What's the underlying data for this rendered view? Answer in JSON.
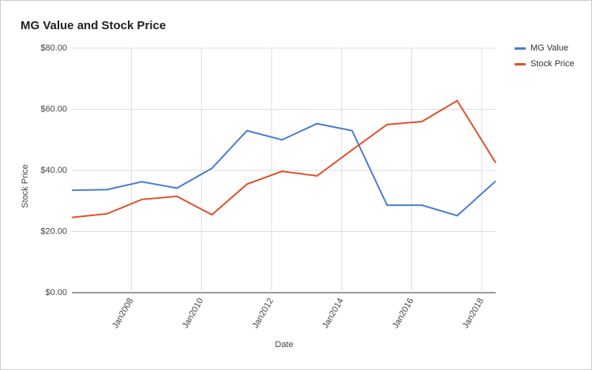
{
  "chart_data": {
    "type": "line",
    "title": "MG Value and Stock Price",
    "x_label": "Date",
    "y_label": "Stock Price",
    "x": [
      2006.3,
      2007.3,
      2008.3,
      2009.3,
      2010.3,
      2011.3,
      2012.3,
      2013.3,
      2014.3,
      2015.3,
      2016.3,
      2017.3,
      2018.4
    ],
    "series": [
      {
        "name": "MG Value",
        "color": "#4a7bd0",
        "values": [
          33.5,
          33.7,
          36.3,
          34.2,
          40.7,
          53,
          50,
          55.3,
          53,
          28.6,
          28.6,
          25.2,
          36.5
        ]
      },
      {
        "name": "Stock Price",
        "color": "#e0502a",
        "values": [
          24.6,
          25.8,
          30.5,
          31.5,
          25.5,
          35.5,
          39.7,
          38.2,
          46.7,
          55,
          56,
          62.8,
          42.5
        ]
      }
    ],
    "xlim": [
      2006.3,
      2018.4
    ],
    "xticks": [
      {
        "value": 2008,
        "label": "Jan2008"
      },
      {
        "value": 2010,
        "label": "Jan2010"
      },
      {
        "value": 2012,
        "label": "Jan2012"
      },
      {
        "value": 2014,
        "label": "Jan2014"
      },
      {
        "value": 2016,
        "label": "Jan2016"
      },
      {
        "value": 2018,
        "label": "Jan2018"
      }
    ],
    "ylim": [
      0,
      80
    ],
    "yticks": [
      {
        "value": 0,
        "label": "$0.00"
      },
      {
        "value": 20,
        "label": "$20.00"
      },
      {
        "value": 40,
        "label": "$40.00"
      },
      {
        "value": 60,
        "label": "$60.00"
      },
      {
        "value": 80,
        "label": "$80.00"
      }
    ],
    "grid": true,
    "legend": "right"
  }
}
